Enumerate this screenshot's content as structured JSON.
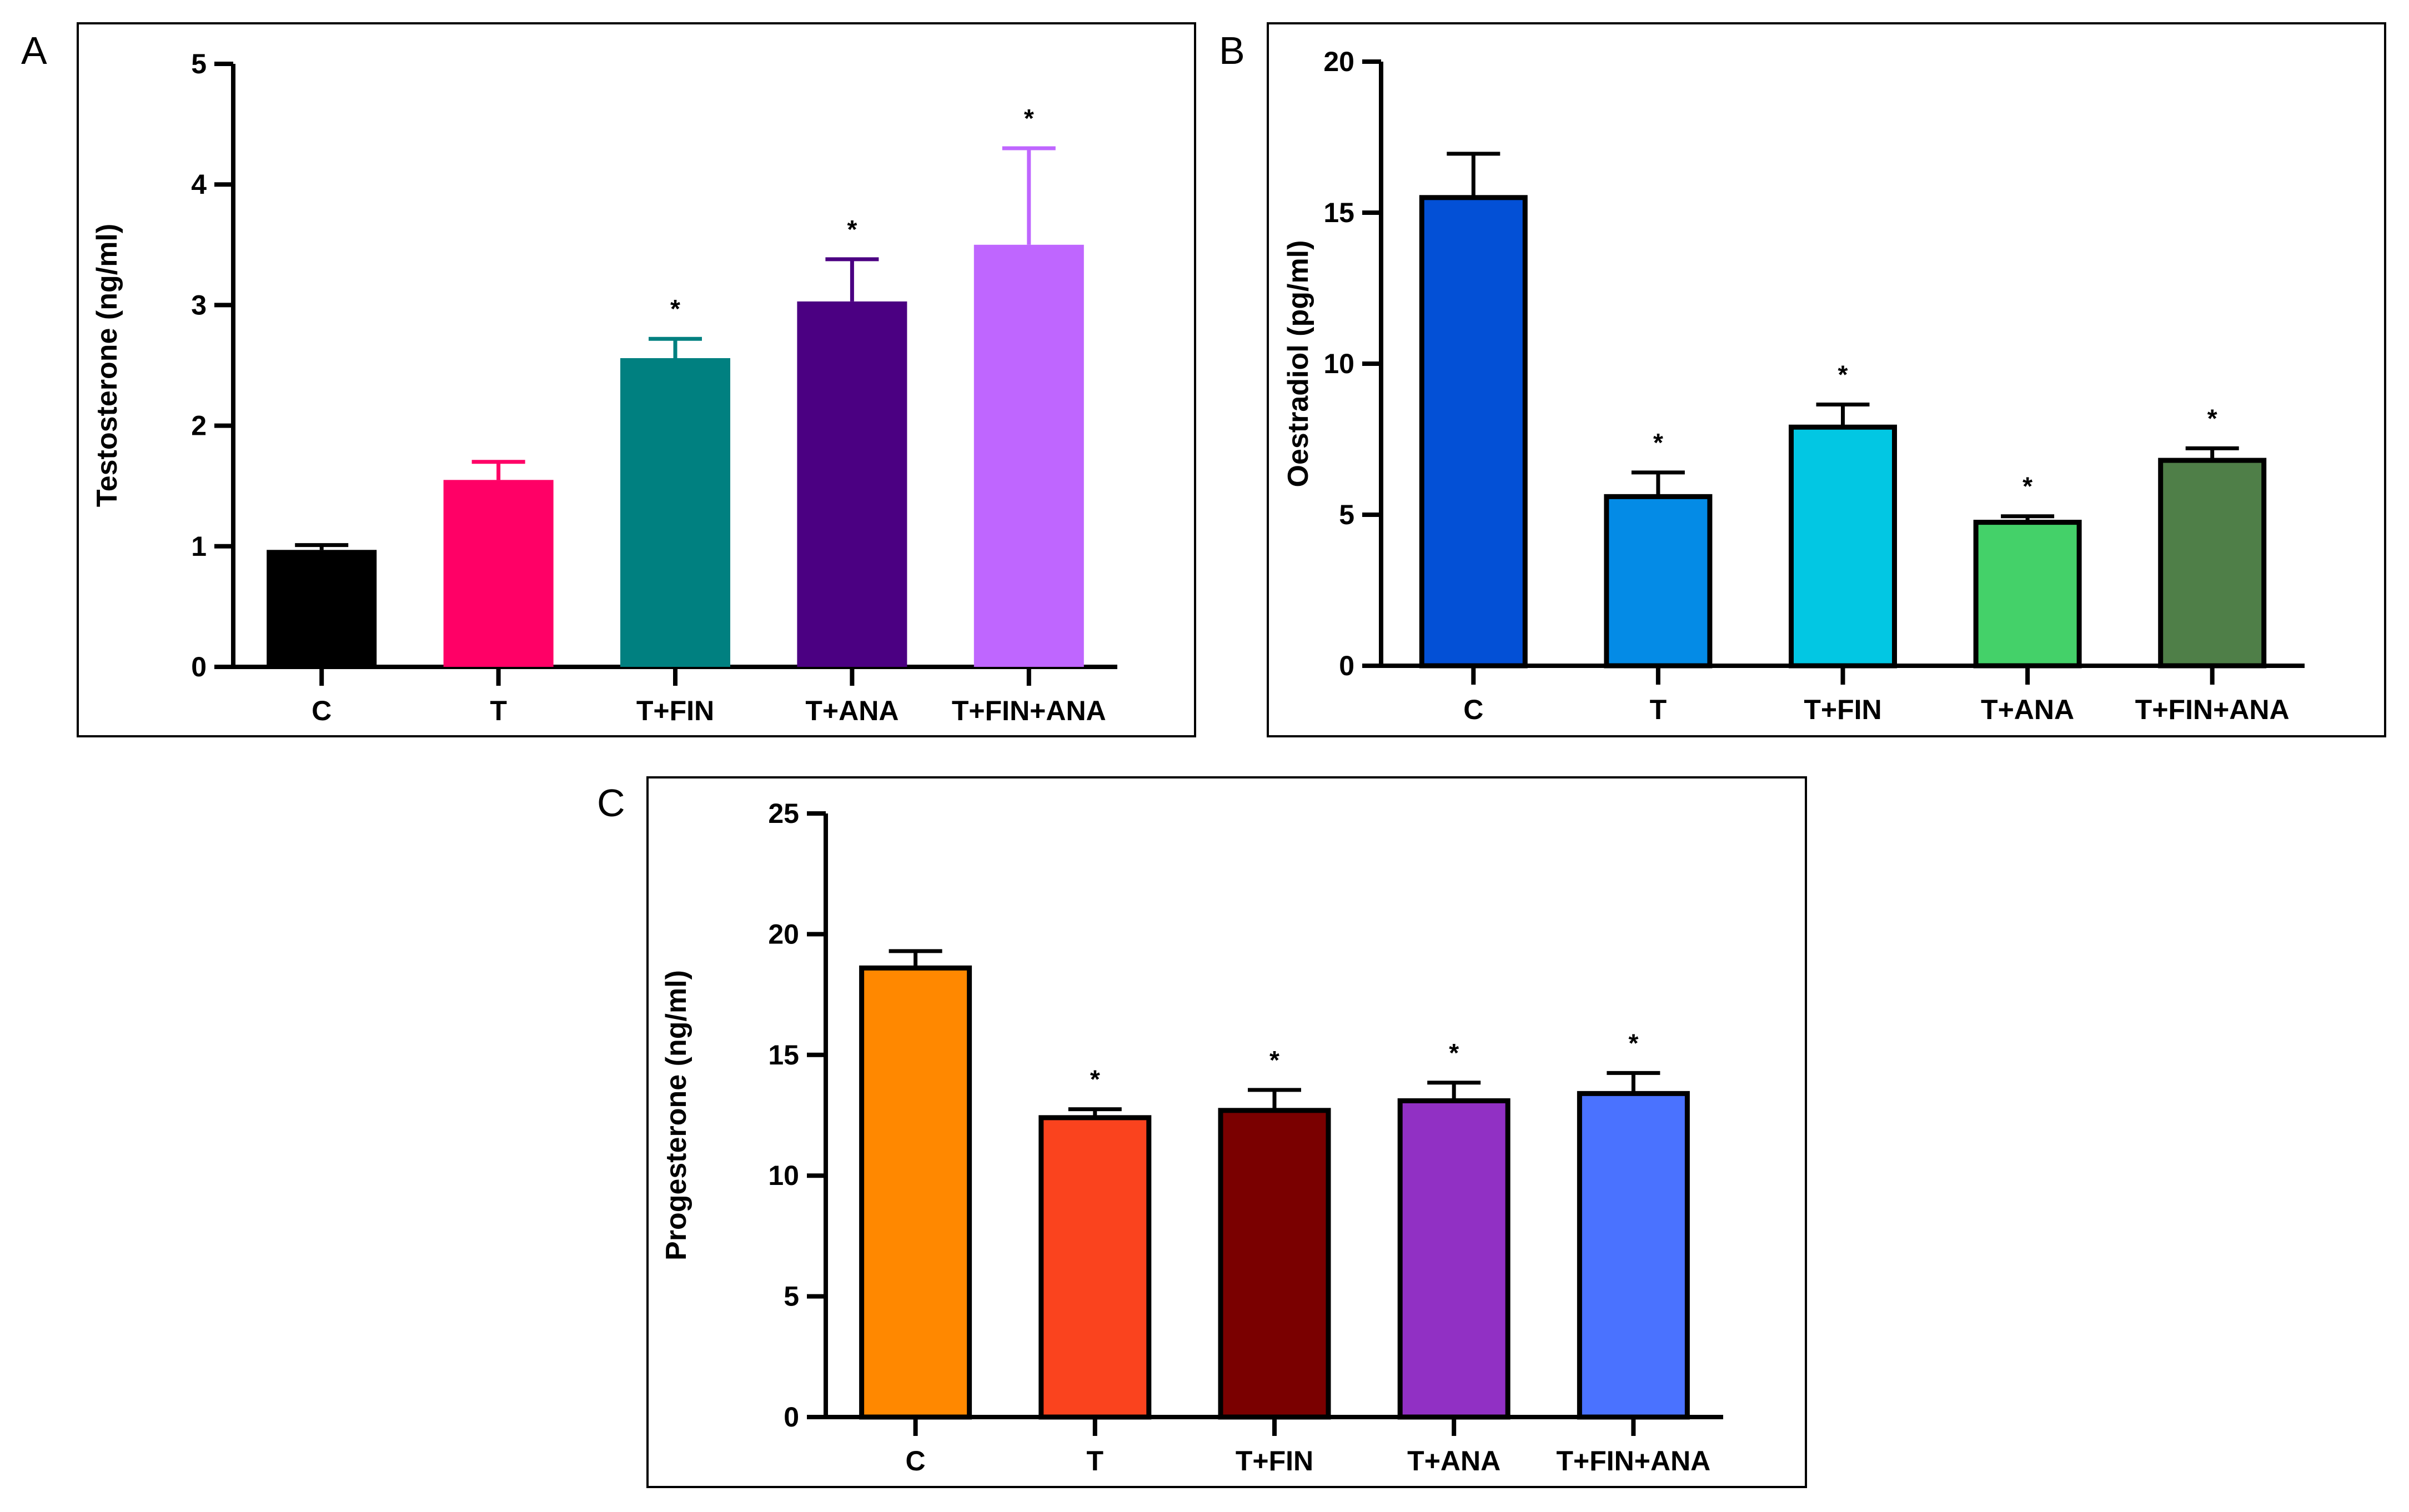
{
  "chart_data": [
    {
      "panel": "A",
      "type": "bar",
      "title": "",
      "xlabel": "",
      "ylabel": "Testosterone (ng/ml)",
      "categories": [
        "C",
        "T",
        "T+FIN",
        "T+ANA",
        "T+FIN+ANA"
      ],
      "values": [
        0.97,
        1.55,
        2.56,
        3.03,
        3.5
      ],
      "errors": [
        0.04,
        0.15,
        0.16,
        0.35,
        0.8
      ],
      "significance": [
        "",
        "",
        "*",
        "*",
        "*"
      ],
      "colors": [
        "#000000",
        "#FF0066",
        "#008080",
        "#4B0082",
        "#BF66FF"
      ],
      "outlined": false,
      "ylim": [
        0,
        5
      ],
      "yticks": [
        0,
        1,
        2,
        3,
        4,
        5
      ],
      "grid": false
    },
    {
      "panel": "B",
      "type": "bar",
      "title": "",
      "xlabel": "",
      "ylabel": "Oestradiol (pg/ml)",
      "categories": [
        "C",
        "T",
        "T+FIN",
        "T+ANA",
        "T+FIN+ANA"
      ],
      "values": [
        15.5,
        5.6,
        7.9,
        4.75,
        6.8
      ],
      "errors": [
        1.45,
        0.8,
        0.75,
        0.2,
        0.4
      ],
      "significance": [
        "",
        "*",
        "*",
        "*",
        "*"
      ],
      "colors": [
        "#0350D6",
        "#048BE6",
        "#02C7E3",
        "#44D169",
        "#4F7F48"
      ],
      "outlined": true,
      "ylim": [
        0,
        20
      ],
      "yticks": [
        0,
        5,
        10,
        15,
        20
      ],
      "grid": false
    },
    {
      "panel": "C",
      "type": "bar",
      "title": "",
      "xlabel": "",
      "ylabel": "Progesterone (ng/ml)",
      "categories": [
        "C",
        "T",
        "T+FIN",
        "T+ANA",
        "T+FIN+ANA"
      ],
      "values": [
        18.6,
        12.4,
        12.7,
        13.1,
        13.4
      ],
      "errors": [
        0.7,
        0.35,
        0.85,
        0.75,
        0.85
      ],
      "significance": [
        "",
        "*",
        "*",
        "*",
        "*"
      ],
      "colors": [
        "#FF8800",
        "#FA431E",
        "#7A0000",
        "#9130C4",
        "#4A72FF"
      ],
      "outlined": true,
      "ylim": [
        0,
        25
      ],
      "yticks": [
        0,
        5,
        10,
        15,
        20,
        25
      ],
      "grid": false
    }
  ]
}
